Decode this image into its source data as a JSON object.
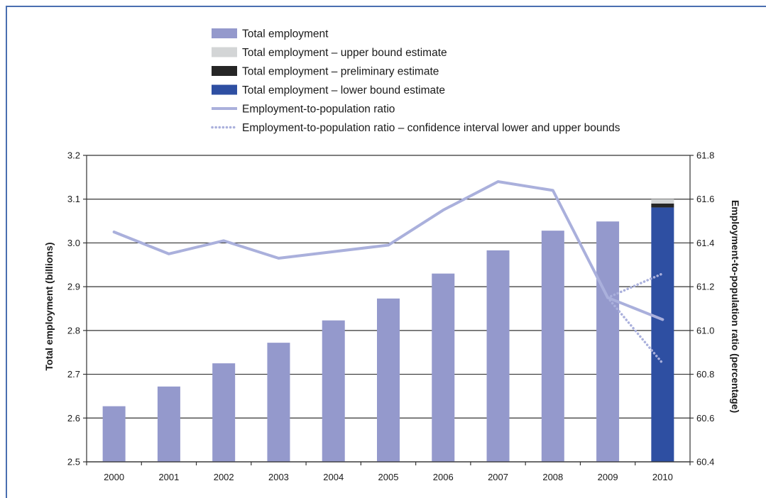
{
  "chart_data": {
    "type": "bar",
    "title": "",
    "categories": [
      "2000",
      "2001",
      "2002",
      "2003",
      "2004",
      "2005",
      "2006",
      "2007",
      "2008",
      "2009",
      "2010"
    ],
    "ylabel": "Total employment (billions)",
    "ylabel_right": "Employment-to-population ratio (percentage)",
    "ylim": [
      2.5,
      3.2
    ],
    "ylim_right": [
      60.4,
      61.8
    ],
    "yticks": [
      "2.5",
      "2.6",
      "2.7",
      "2.8",
      "2.9",
      "3.0",
      "3.1",
      "3.2"
    ],
    "yticks_right": [
      "60.4",
      "60.6",
      "60.8",
      "61.0",
      "61.2",
      "61.4",
      "61.6",
      "61.8"
    ],
    "grid": "horizontal",
    "legend_position": "top",
    "series": [
      {
        "name": "Total employment",
        "kind": "bar",
        "color": "#9499cc",
        "values": [
          2.627,
          2.672,
          2.725,
          2.772,
          2.823,
          2.873,
          2.93,
          2.983,
          3.028,
          3.049,
          null
        ]
      },
      {
        "name": "Total employment – lower bound estimate",
        "kind": "bar",
        "color": "#2e4fa2",
        "values": [
          null,
          null,
          null,
          null,
          null,
          null,
          null,
          null,
          null,
          null,
          3.081
        ]
      },
      {
        "name": "Total employment – preliminary estimate",
        "kind": "bar",
        "color": "#262626",
        "values": [
          null,
          null,
          null,
          null,
          null,
          null,
          null,
          null,
          null,
          null,
          3.09
        ]
      },
      {
        "name": "Total employment – upper bound estimate",
        "kind": "bar",
        "color": "#d3d5d6",
        "values": [
          null,
          null,
          null,
          null,
          null,
          null,
          null,
          null,
          null,
          null,
          3.1
        ]
      },
      {
        "name": "Employment-to-population ratio",
        "kind": "line",
        "axis": "right",
        "color": "#aab0dc",
        "values": [
          61.45,
          61.35,
          61.41,
          61.33,
          61.36,
          61.39,
          61.55,
          61.68,
          61.64,
          61.15,
          61.05
        ]
      },
      {
        "name": "Employment-to-population ratio – confidence interval lower and upper bounds",
        "kind": "dotted",
        "axis": "right",
        "color": "#aab0dc",
        "upper": [
          null,
          null,
          null,
          null,
          null,
          null,
          null,
          null,
          null,
          61.15,
          61.26
        ],
        "lower": [
          null,
          null,
          null,
          null,
          null,
          null,
          null,
          null,
          null,
          61.15,
          60.85
        ]
      }
    ],
    "legend": [
      {
        "label": "Total employment",
        "swatch": "box",
        "color": "#9499cc"
      },
      {
        "label": "Total employment – upper bound estimate",
        "swatch": "box",
        "color": "#d3d5d6"
      },
      {
        "label": "Total employment – preliminary estimate",
        "swatch": "box",
        "color": "#262626"
      },
      {
        "label": "Total employment – lower bound estimate",
        "swatch": "box",
        "color": "#2e4fa2"
      },
      {
        "label": "Employment-to-population ratio",
        "swatch": "line",
        "color": "#aab0dc"
      },
      {
        "label": "Employment-to-population ratio – confidence interval lower and upper bounds",
        "swatch": "dots",
        "color": "#aab0dc"
      }
    ]
  }
}
